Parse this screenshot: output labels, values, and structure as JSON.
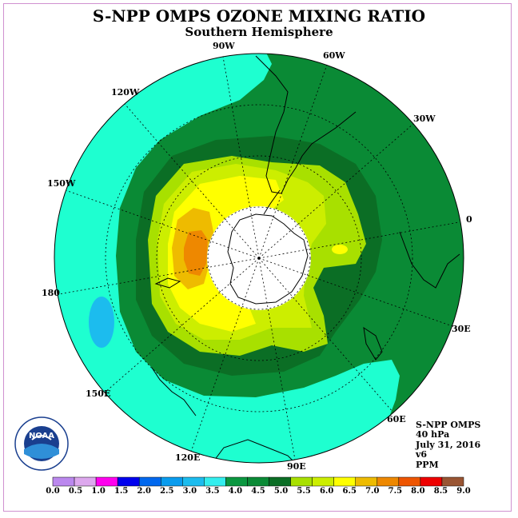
{
  "title": "S-NPP OMPS OZONE MIXING RATIO",
  "subtitle": "Southern Hemisphere",
  "longitude_labels": {
    "lon_90w": "90W",
    "lon_60w": "60W",
    "lon_30w": "30W",
    "lon_0": "0",
    "lon_30e": "30E",
    "lon_60e": "60E",
    "lon_90e": "90E",
    "lon_120e": "120E",
    "lon_150e": "150E",
    "lon_180": "180",
    "lon_150w": "150W",
    "lon_120w": "120W"
  },
  "info": {
    "instrument": "S-NPP OMPS",
    "pressure": "40 hPa",
    "date": "July 31, 2016",
    "version": "v6",
    "units": "PPM"
  },
  "logo_text": "NOAA",
  "colorbar": {
    "colors": [
      "#bb88ee",
      "#dda8ee",
      "#ff00ee",
      "#0000ee",
      "#0068ee",
      "#0a9cee",
      "#1cbcee",
      "#33eeee",
      "#0b9740",
      "#0a8a35",
      "#0b6e25",
      "#a8e000",
      "#ccee00",
      "#ffff00",
      "#eebb00",
      "#ee8800",
      "#ee5500",
      "#ee0000",
      "#995533"
    ],
    "labels": [
      "0.0",
      "0.5",
      "1.0",
      "1.5",
      "2.0",
      "2.5",
      "3.0",
      "3.5",
      "4.0",
      "4.5",
      "5.0",
      "5.5",
      "6.0",
      "6.5",
      "7.0",
      "7.5",
      "8.0",
      "8.5",
      "9.0"
    ]
  },
  "legend_levels": {
    "outer": "4.5",
    "tropics": "3.5",
    "low_pocket": "3.0",
    "ring": "5.0",
    "light_green": "5.5",
    "yellow_green": "6.0",
    "yellow": "6.5",
    "gold": "7.0",
    "orange": "7.5"
  },
  "colors": {
    "background_disk": "#0a8a35",
    "tropics": "#1effd0",
    "low_pocket": "#1cbcee",
    "ring": "#0b6e25",
    "light_green": "#a8e000",
    "yellow_green": "#ccee00",
    "yellow": "#ffff00",
    "gold": "#eebb00",
    "orange": "#ee8800"
  }
}
